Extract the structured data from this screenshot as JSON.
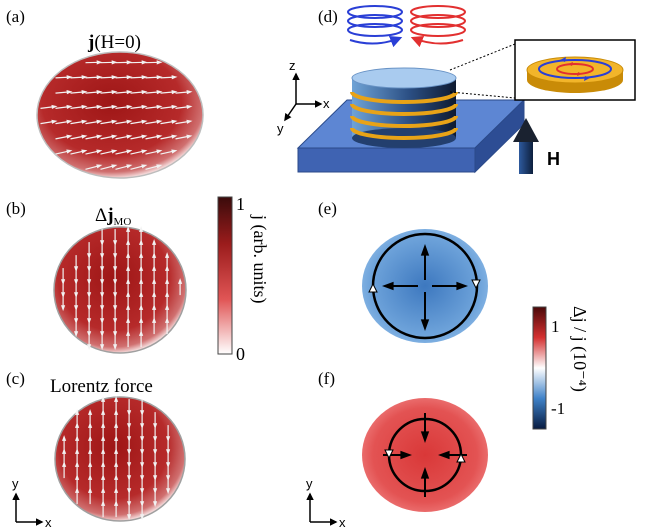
{
  "panels": {
    "a": {
      "label": "(a)",
      "title_bold": "j",
      "title_rest": "(H=0)"
    },
    "b": {
      "label": "(b)",
      "title_delta": "Δ",
      "title_bold": "j",
      "title_sub": "MO"
    },
    "c": {
      "label": "(c)",
      "title": "Lorentz force"
    },
    "d": {
      "label": "(d)",
      "field_label": "H"
    },
    "e": {
      "label": "(e)"
    },
    "f": {
      "label": "(f)"
    }
  },
  "axes": {
    "x": "x",
    "y": "y",
    "z": "z"
  },
  "colorbar_left": {
    "label": "j (arb. units)",
    "max_tick": "1",
    "min_tick": "0"
  },
  "colorbar_right": {
    "label": "Δj / j (10⁻⁴)",
    "max_tick": "1",
    "min_tick": "-1"
  },
  "colors": {
    "disk_red": "#9b1c1c",
    "disk_blue": "#5b95cf",
    "disk_red_light": "#e04848",
    "coil_blue": "#2a3fd6",
    "coil_red": "#e23030",
    "slab": "#4a6fc0",
    "gold": "#e8a317"
  }
}
